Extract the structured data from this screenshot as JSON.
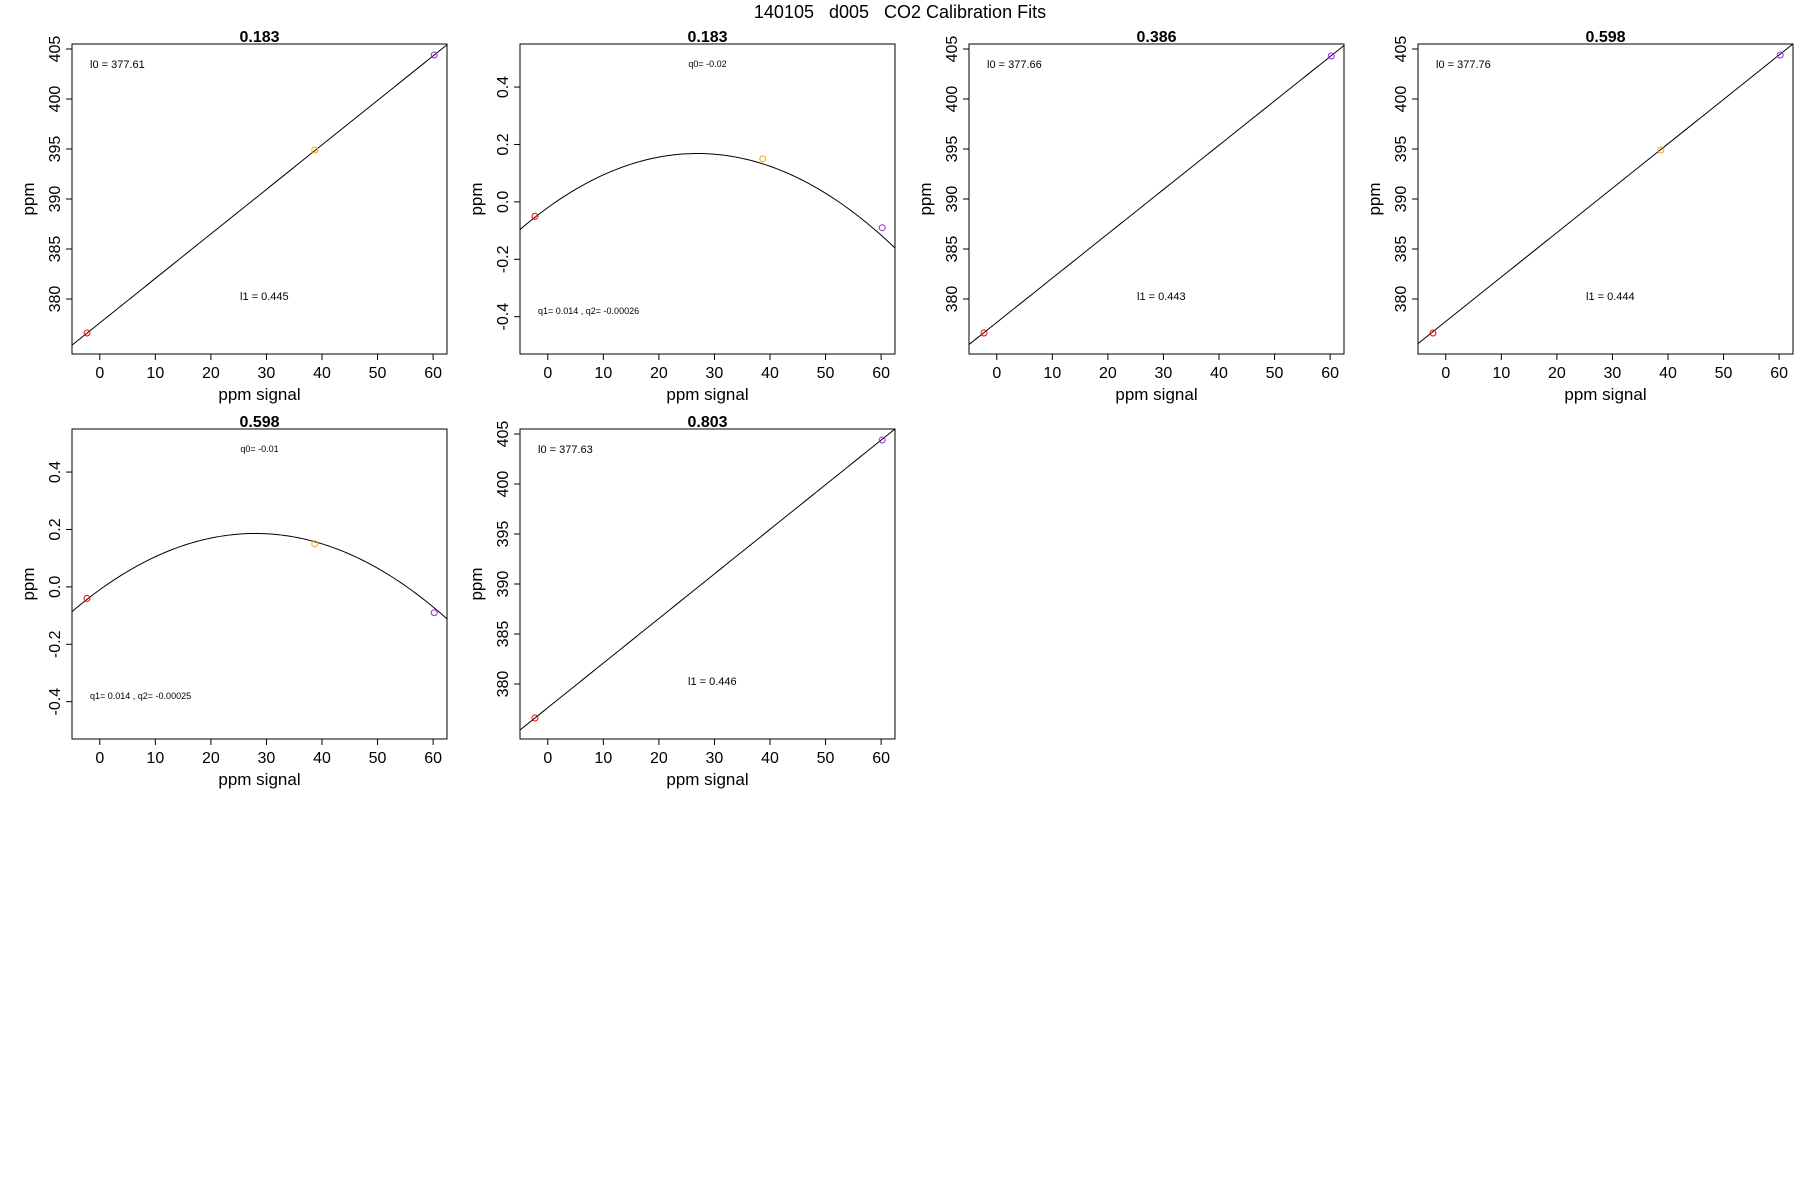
{
  "page": {
    "title": "140105   d005   CO2 Calibration Fits"
  },
  "chart_data": [
    {
      "type": "scatter",
      "title": "0.183",
      "xlabel": "ppm signal",
      "ylabel": "ppm",
      "xlim": [
        -5,
        62.5
      ],
      "ylim": [
        374.5,
        405.5
      ],
      "xticks": [
        0,
        10,
        20,
        30,
        40,
        50,
        60
      ],
      "yticks": [
        380,
        385,
        390,
        395,
        400,
        405
      ],
      "fit": {
        "kind": "linear",
        "intercept": 377.61,
        "slope": 0.445
      },
      "annotations": {
        "top": "l0 =  377.61",
        "bottom": "l1 =  0.445"
      },
      "points": [
        {
          "x": -2.3,
          "y": 376.6,
          "color": "#ff0000"
        },
        {
          "x": 38.7,
          "y": 394.9,
          "color": "#ffa500"
        },
        {
          "x": 60.2,
          "y": 404.4,
          "color": "#a020f0"
        }
      ]
    },
    {
      "type": "scatter",
      "title": "0.183",
      "xlabel": "ppm signal",
      "ylabel": "ppm",
      "xlim": [
        -5,
        62.5
      ],
      "ylim": [
        -0.53,
        0.55
      ],
      "xticks": [
        0,
        10,
        20,
        30,
        40,
        50,
        60
      ],
      "yticks": [
        -0.4,
        -0.2,
        0.0,
        0.2,
        0.4
      ],
      "fit": {
        "kind": "quadratic",
        "q0": -0.02,
        "q1": 0.014,
        "q2": -0.00026
      },
      "annotations": {
        "top": "q0= -0.02",
        "bottom": "q1= 0.014 , q2= -0.00026"
      },
      "points": [
        {
          "x": -2.3,
          "y": -0.05,
          "color": "#ff0000"
        },
        {
          "x": 38.7,
          "y": 0.15,
          "color": "#ffa500"
        },
        {
          "x": 60.2,
          "y": -0.09,
          "color": "#a020f0"
        }
      ]
    },
    {
      "type": "scatter",
      "title": "0.386",
      "xlabel": "ppm signal",
      "ylabel": "ppm",
      "xlim": [
        -5,
        62.5
      ],
      "ylim": [
        374.5,
        405.5
      ],
      "xticks": [
        0,
        10,
        20,
        30,
        40,
        50,
        60
      ],
      "yticks": [
        380,
        385,
        390,
        395,
        400,
        405
      ],
      "fit": {
        "kind": "linear",
        "intercept": 377.66,
        "slope": 0.443
      },
      "annotations": {
        "top": "l0 =  377.66",
        "bottom": "l1 =  0.443"
      },
      "points": [
        {
          "x": -2.3,
          "y": 376.6,
          "color": "#ff0000"
        },
        {
          "x": 60.2,
          "y": 404.3,
          "color": "#a020f0"
        }
      ]
    },
    {
      "type": "scatter",
      "title": "0.598",
      "xlabel": "ppm signal",
      "ylabel": "ppm",
      "xlim": [
        -5,
        62.5
      ],
      "ylim": [
        374.5,
        405.5
      ],
      "xticks": [
        0,
        10,
        20,
        30,
        40,
        50,
        60
      ],
      "yticks": [
        380,
        385,
        390,
        395,
        400,
        405
      ],
      "fit": {
        "kind": "linear",
        "intercept": 377.76,
        "slope": 0.444
      },
      "annotations": {
        "top": "l0 =  377.76",
        "bottom": "l1 =  0.444"
      },
      "points": [
        {
          "x": -2.3,
          "y": 376.6,
          "color": "#ff0000"
        },
        {
          "x": 38.7,
          "y": 394.9,
          "color": "#ffa500"
        },
        {
          "x": 60.2,
          "y": 404.4,
          "color": "#a020f0"
        }
      ]
    },
    {
      "type": "scatter",
      "title": "0.598",
      "xlabel": "ppm signal",
      "ylabel": "ppm",
      "xlim": [
        -5,
        62.5
      ],
      "ylim": [
        -0.53,
        0.55
      ],
      "xticks": [
        0,
        10,
        20,
        30,
        40,
        50,
        60
      ],
      "yticks": [
        -0.4,
        -0.2,
        0.0,
        0.2,
        0.4
      ],
      "fit": {
        "kind": "quadratic",
        "q0": -0.01,
        "q1": 0.014,
        "q2": -0.00025
      },
      "annotations": {
        "top": "q0= -0.01",
        "bottom": "q1= 0.014 , q2= -0.00025"
      },
      "points": [
        {
          "x": -2.3,
          "y": -0.04,
          "color": "#ff0000"
        },
        {
          "x": 38.7,
          "y": 0.15,
          "color": "#ffa500"
        },
        {
          "x": 60.2,
          "y": -0.09,
          "color": "#a020f0"
        }
      ]
    },
    {
      "type": "scatter",
      "title": "0.803",
      "xlabel": "ppm signal",
      "ylabel": "ppm",
      "xlim": [
        -5,
        62.5
      ],
      "ylim": [
        374.5,
        405.5
      ],
      "xticks": [
        0,
        10,
        20,
        30,
        40,
        50,
        60
      ],
      "yticks": [
        380,
        385,
        390,
        395,
        400,
        405
      ],
      "fit": {
        "kind": "linear",
        "intercept": 377.63,
        "slope": 0.446
      },
      "annotations": {
        "top": "l0 =  377.63",
        "bottom": "l1 =  0.446"
      },
      "points": [
        {
          "x": -2.3,
          "y": 376.6,
          "color": "#ff0000"
        },
        {
          "x": 60.2,
          "y": 404.4,
          "color": "#a020f0"
        }
      ]
    }
  ]
}
